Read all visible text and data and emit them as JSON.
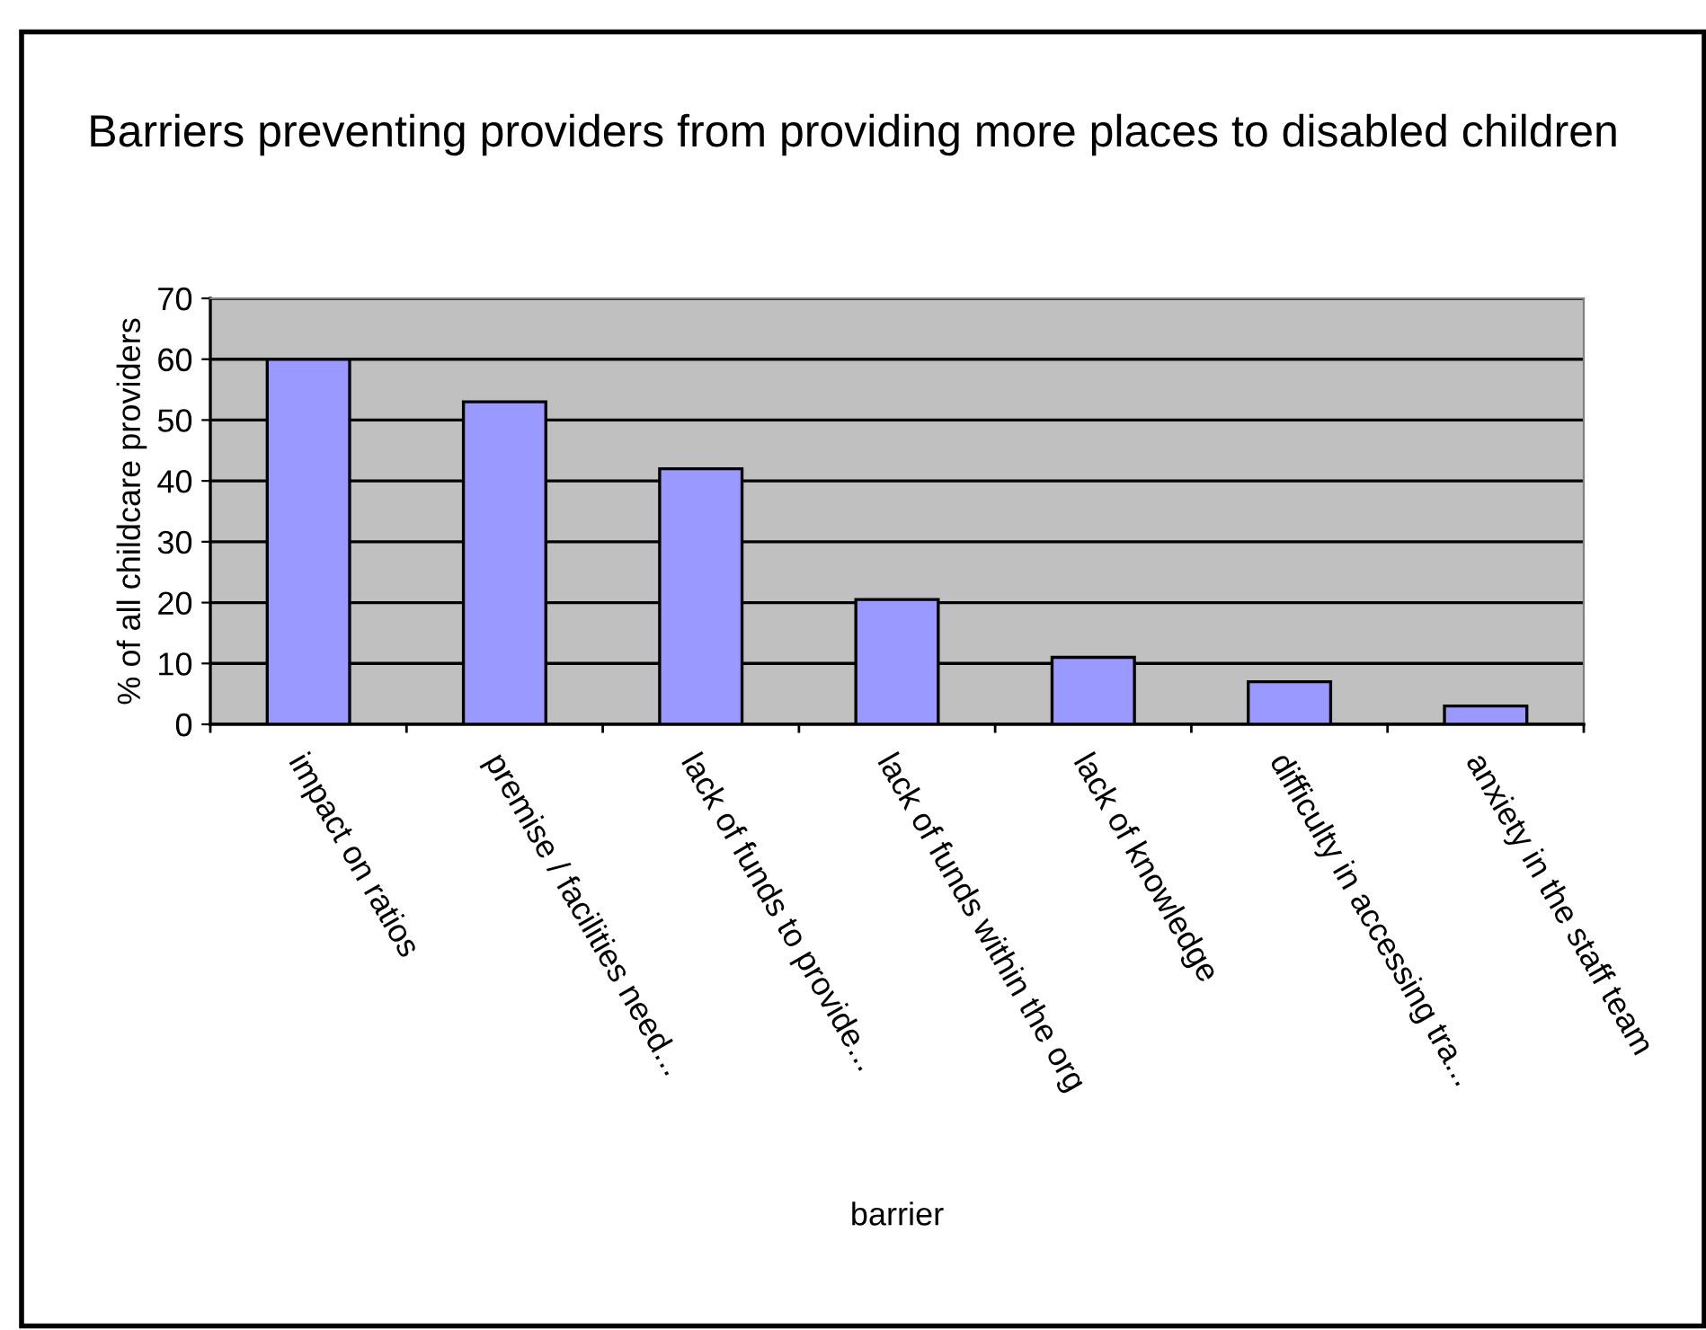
{
  "chart_data": {
    "type": "bar",
    "title": "Barriers preventing providers from providing more places to disabled children",
    "xlabel": "barrier",
    "ylabel": "% of all childcare providers",
    "categories": [
      "impact on ratios",
      "premise / facilities need...",
      "lack of funds to provide...",
      "lack of funds within the org",
      "lack of knowledge",
      "difficulty in accessing tra...",
      "anxiety in the staff team"
    ],
    "values": [
      60,
      53,
      42,
      20.5,
      11,
      7,
      3
    ],
    "color": "#9999ff",
    "ylim": [
      0,
      70
    ],
    "yticks": [
      0,
      10,
      20,
      30,
      40,
      50,
      60,
      70
    ],
    "grid": "y",
    "legend": false
  }
}
